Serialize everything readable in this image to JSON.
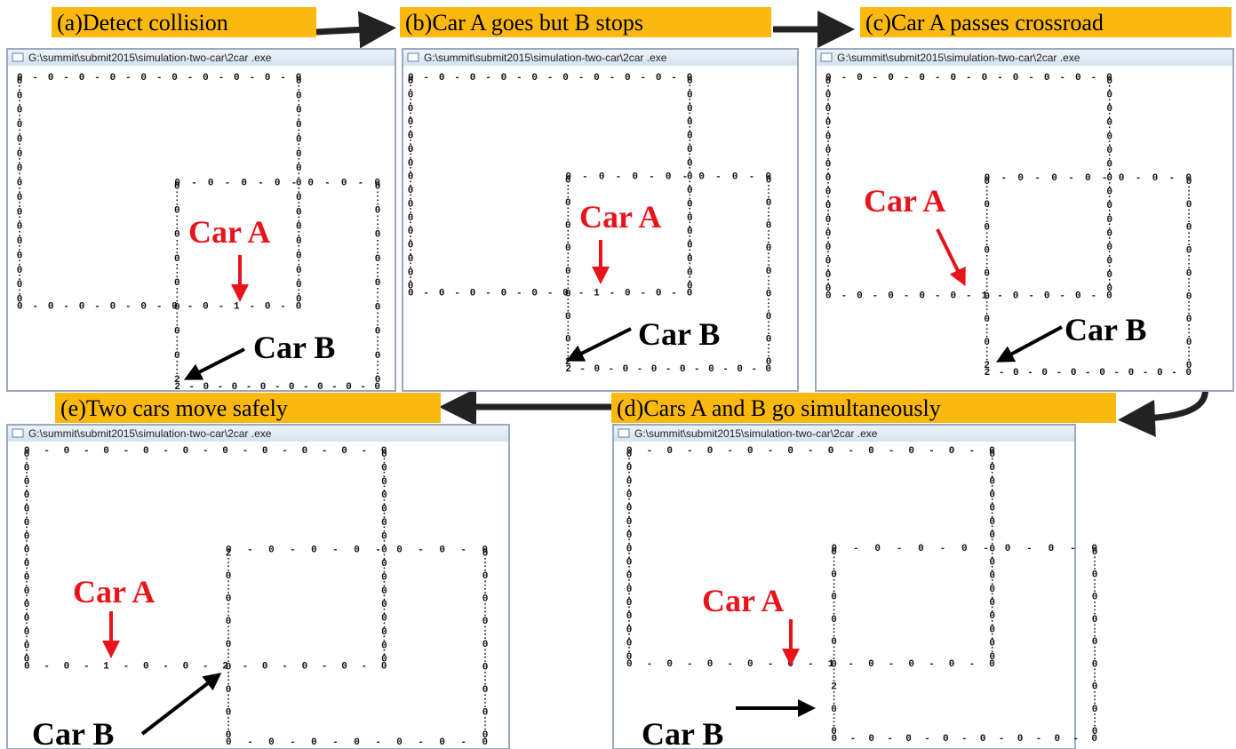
{
  "steps": [
    {
      "label": "(a)Detect collision"
    },
    {
      "label": "(b)Car A goes but B stops"
    },
    {
      "label": "(c)Car A passes crossroad"
    },
    {
      "label": "(d)Cars A and B go   simultaneously"
    },
    {
      "label": "(e)Two cars move safely"
    }
  ],
  "panels": [
    {
      "window_title": "G:\\summit\\submit2015\\simulation-two-car\\2car .exe",
      "car_a": "Car A",
      "car_b": "Car B",
      "tracks": [
        "0 - 0 - 0 - 0 - 0 - 0 - 0 - 0 - 0 - 0",
        "0:0:0:0:0:0:0:0:0:0:0:0:0:0:0:0",
        "0:0:0:0:0:0:0:0:0:0:0:0:0:0:0:0",
        "0 - 0 - 0 - 0 - 0 - 0 - 0 - 1 - 0 - 0",
        "0 - 0 - 0 - 0 - 0 - 0 - 0",
        "0::0::0::0::0::0::0::0::2",
        "0::0::0::0::0::0::0::0::0",
        "2 - 0 - 0 - 0 - 0 - 0 - 0 - 0"
      ]
    },
    {
      "window_title": "G:\\summit\\submit2015\\simulation-two-car\\2car .exe",
      "car_a": "Car A",
      "car_b": "Car B",
      "tracks": [
        "0 - 0 - 0 - 0 - 0 - 0 - 0 - 0 - 0 - 0",
        "0:0:0:0:0:0:0:0:0:0:0:0:0:0:0:0",
        "0:0:0:0:0:0:0:0:0:0:0:0:0:0:0:0",
        "0 - 0 - 0 - 0 - 0 - 0 - 1 - 0 - 0 - 0",
        "0 - 0 - 0 - 0 - 0 - 0 - 0",
        "0::0::0::0::0::0::0::0::2",
        "0::0::0::0::0::0::0::0::0",
        "2 - 0 - 0 - 0 - 0 - 0 - 0 - 0"
      ]
    },
    {
      "window_title": "G:\\summit\\submit2015\\simulation-two-car\\2car .exe",
      "car_a": "Car A",
      "car_b": "Car B",
      "tracks": [
        "0 - 0 - 0 - 0 - 0 - 0 - 0 - 0 - 0 - 0",
        "0:0:0:0:0:0:0:0:0:0:0:0:0:0:0:0",
        "0:0:0:0:0:0:0:0:0:0:0:0:0:0:0:0",
        "0 - 0 - 0 - 0 - 0 - 1 - 0 - 0 - 0 - 0",
        "0 - 0 - 0 - 0 - 0 - 0 - 0",
        "0::0::0::0::0::0::0::0::2",
        "0::0::0::0::0::0::0::0::0",
        "2 - 0 - 0 - 0 - 0 - 0 - 0 - 0"
      ]
    },
    {
      "window_title": "G:\\summit\\submit2015\\simulation-two-car\\2car .exe",
      "car_a": "Car A",
      "car_b": "Car B",
      "tracks": [
        "0 - 0 - 0 - 0 - 0 - 0 - 0 - 0 - 0 - 0",
        "0:0:0:0:0:0:0:0:0:0:0:0:0:0:0:0",
        "0:0:0:0:0:0:0:0:0:0:0:0:0:0:0:0",
        "0 - 0 - 0 - 0 - 0 - 1 - 0 - 0 - 0 - 0",
        "0 - 0 - 0 - 0 - 0 - 0 - 0",
        "0::0::0::0::0::0::2::0::0",
        "0::0::0::0::0::0::0::0::0",
        "0 - 0 - 0 - 0 - 0 - 0 - 0 - 0"
      ]
    },
    {
      "window_title": "G:\\summit\\submit2015\\simulation-two-car\\2car .exe",
      "car_a": "Car A",
      "car_b": "Car B",
      "tracks": [
        "0 - 0 - 0 - 0 - 0 - 0 - 0 - 0 - 0 - 0",
        "0:0:0:0:0:0:0:0:0:0:0:0:0:0:0:0",
        "0:0:0:0:0:0:0:0:0:0:0:0:0:0:0:0",
        "0 - 0 - 1 - 0 - 0 - 2 - 0 - 0 - 0 - 0",
        "0 - 0 - 0 - 0 - 0 - 0 - 0",
        "2::0::0::0::0::0::0::0::0",
        "0::0::0::0::0::0::0::0::0",
        "0 - 0 - 0 - 0 - 0 - 0 - 0"
      ]
    }
  ]
}
